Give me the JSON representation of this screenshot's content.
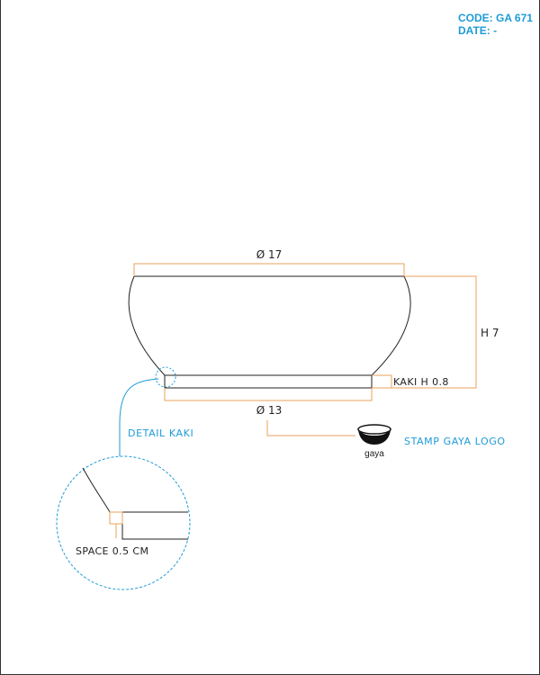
{
  "header": {
    "code_label": "CODE:",
    "code_value": "GA 671",
    "date_label": "DATE:",
    "date_value": "-"
  },
  "dimensions": {
    "top_diameter": "Ø 17",
    "height": "H 7",
    "kaki_height": "KAKI H 0.8",
    "base_diameter": "Ø 13"
  },
  "detail": {
    "title": "DETAIL KAKI",
    "space_note": "SPACE 0.5 CM"
  },
  "stamp": {
    "label": "STAMP GAYA LOGO",
    "logo_text": "gaya"
  },
  "colors": {
    "accent_blue": "#1e9bd7",
    "dimension_orange": "#e8a15a",
    "outline": "#222222"
  }
}
